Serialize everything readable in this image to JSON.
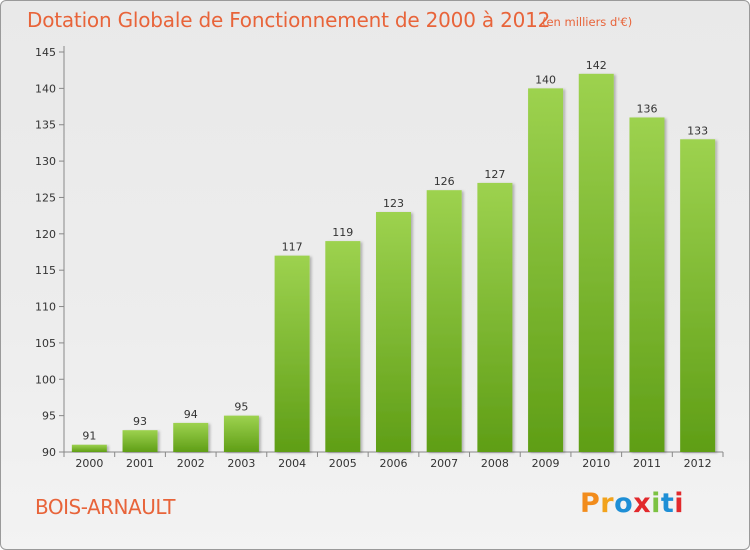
{
  "chart_data": {
    "type": "bar",
    "title": "Dotation Globale de Fonctionnement de 2000 à 2012",
    "subtitle": "(en milliers d'€)",
    "categories": [
      "2000",
      "2001",
      "2002",
      "2003",
      "2004",
      "2005",
      "2006",
      "2007",
      "2008",
      "2009",
      "2010",
      "2011",
      "2012"
    ],
    "values": [
      91,
      93,
      94,
      95,
      117,
      119,
      123,
      126,
      127,
      140,
      142,
      136,
      133
    ],
    "ylim": [
      90,
      145
    ],
    "yticks": [
      90,
      95,
      100,
      105,
      110,
      115,
      120,
      125,
      130,
      135,
      140,
      145
    ],
    "xlabel": "",
    "ylabel": "",
    "grid": false,
    "bar_color_top": "#9dd24f",
    "bar_color_bottom": "#5f9e16"
  },
  "commune": "BOIS-ARNAULT",
  "brand": {
    "letters": [
      "P",
      "r",
      "o",
      "x",
      "i",
      "t",
      "i"
    ],
    "colors": [
      "#f28c1c",
      "#f2a31c",
      "#1e8fd6",
      "#e2292c",
      "#7cc242",
      "#1e8fd6",
      "#e2292c"
    ]
  }
}
